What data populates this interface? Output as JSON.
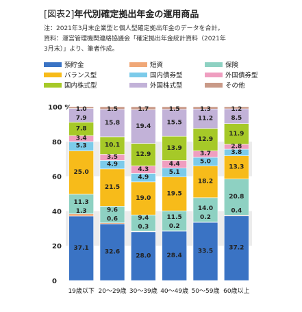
{
  "header": {
    "tag": "[図表2]",
    "title": "年代別確定拠出年金の運用商品",
    "note1": "注：2021年3月末企業型と個人型確定拠出年金のデータを合計。",
    "note2": "資料：運営管理機関連絡協議会「確定拠出年金統計資料（2021年",
    "note3": "3月末）」より、筆者作成。"
  },
  "legend": [
    {
      "name": "預貯金",
      "color": "#3a73c4"
    },
    {
      "name": "短資",
      "color": "#f0a878"
    },
    {
      "name": "保険",
      "color": "#8ed1c2"
    },
    {
      "name": "バランス型",
      "color": "#f7bb1a"
    },
    {
      "name": "国内債券型",
      "color": "#7ccbea"
    },
    {
      "name": "外国債券型",
      "color": "#ef9ec0"
    },
    {
      "name": "国内株式型",
      "color": "#a6c928"
    },
    {
      "name": "外国株式型",
      "color": "#c2b2d8"
    },
    {
      "name": "その他",
      "color": "#c99a88"
    }
  ],
  "chart_data": {
    "type": "bar",
    "stacked": true,
    "unit_label": "100 %",
    "ylim": [
      0,
      100
    ],
    "yticks": [
      "0",
      "20",
      "40",
      "60",
      "80"
    ],
    "grid": "alternating bands",
    "categories": [
      "19歳以下",
      "20～29歳",
      "30～39歳",
      "40～49歳",
      "50～59歳",
      "60歳以上"
    ],
    "series": [
      {
        "name": "預貯金",
        "color": "#3a73c4",
        "values": [
          37.1,
          32.6,
          28.0,
          28.4,
          33.5,
          37.2
        ]
      },
      {
        "name": "短資",
        "color": "#f0a878",
        "values": [
          1.3,
          0.6,
          0.3,
          0.2,
          0.2,
          0.4
        ]
      },
      {
        "name": "保険",
        "color": "#8ed1c2",
        "values": [
          11.3,
          9.6,
          9.4,
          11.5,
          14.0,
          20.8
        ]
      },
      {
        "name": "バランス型",
        "color": "#f7bb1a",
        "values": [
          25.0,
          21.5,
          19.0,
          19.5,
          18.2,
          13.3
        ]
      },
      {
        "name": "国内債券型",
        "color": "#7ccbea",
        "values": [
          5.3,
          4.9,
          4.9,
          5.1,
          5.0,
          3.8
        ]
      },
      {
        "name": "外国債券型",
        "color": "#ef9ec0",
        "values": [
          3.4,
          3.5,
          4.3,
          4.4,
          3.7,
          2.8
        ]
      },
      {
        "name": "国内株式型",
        "color": "#a6c928",
        "values": [
          7.8,
          10.1,
          12.9,
          13.9,
          12.9,
          11.9
        ]
      },
      {
        "name": "外国株式型",
        "color": "#c2b2d8",
        "values": [
          7.9,
          15.8,
          19.4,
          15.5,
          11.2,
          8.5
        ]
      },
      {
        "name": "その他",
        "color": "#c99a88",
        "values": [
          1.0,
          1.5,
          1.7,
          1.5,
          1.3,
          1.2
        ]
      }
    ],
    "labels": [
      [
        "37.1",
        "1.3",
        "11.3",
        "25.0",
        "5.3",
        "3.4",
        "7.8",
        "7.9",
        "1.0"
      ],
      [
        "32.6",
        "0.6",
        "9.6",
        "21.5",
        "4.9",
        "3.5",
        "10.1",
        "15.8",
        "1.5"
      ],
      [
        "28.0",
        "0.3",
        "9.4",
        "19.0",
        "4.9",
        "4.3",
        "12.9",
        "19.4",
        "1.7"
      ],
      [
        "28.4",
        "0.2",
        "11.5",
        "19.5",
        "5.1",
        "4.4",
        "13.9",
        "15.5",
        "1.5"
      ],
      [
        "33.5",
        "0.2",
        "14.0",
        "18.2",
        "5.0",
        "3.7",
        "12.9",
        "11.2",
        "1.3"
      ],
      [
        "37.2",
        "0.4",
        "20.8",
        "13.3",
        "3.8",
        "2.8",
        "11.9",
        "8.5",
        "1.2"
      ]
    ]
  }
}
